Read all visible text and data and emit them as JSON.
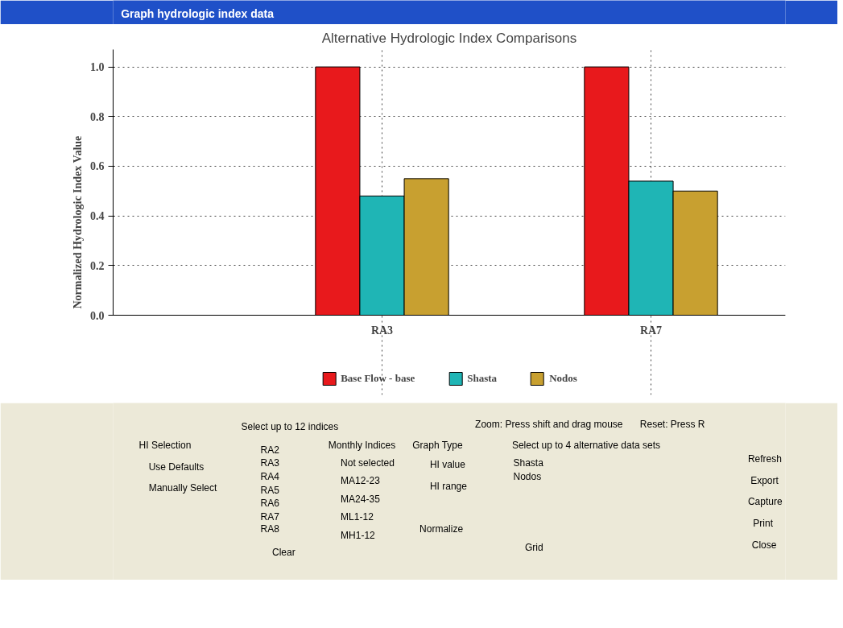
{
  "chart_data": {
    "type": "bar",
    "title": "Alternative Hydrologic Index Comparisons",
    "ylabel": "Normalized Hydrologic Index Value",
    "categories": [
      "RA3",
      "RA7"
    ],
    "series": [
      {
        "name": "Base Flow - base",
        "color": "#e8191c",
        "values": [
          1.0,
          1.0
        ]
      },
      {
        "name": "Shasta",
        "color": "#1fb5b5",
        "values": [
          0.48,
          0.54
        ]
      },
      {
        "name": "Nodos",
        "color": "#c8a030",
        "values": [
          0.55,
          0.5
        ]
      }
    ],
    "ylim": [
      0,
      1.07
    ],
    "yticks": [
      {
        "value": 0,
        "label": "0.0"
      },
      0.2,
      0.4,
      0.6,
      0.8,
      {
        "value": 1,
        "label": "1.0"
      }
    ],
    "grid": true,
    "line_style": "dotted",
    "legend": "bottom",
    "annotations": [
      "Graph hydrologic index data",
      "Select up to 12 indices",
      "Zoom:  Press shift and drag mouse",
      "Reset:  Press R",
      "HI Selection",
      "Use Defaults",
      "Manually Select",
      "RA2",
      "RA3",
      "RA4",
      "RA5",
      "RA6",
      "RA7",
      "RA8",
      "Clear",
      "Monthly Indices",
      "Not selected",
      "MA12-23",
      "MA24-35",
      "ML1-12",
      "MH1-12",
      "Graph Type",
      "HI value",
      "HI range",
      "Normalize",
      "Select up to 4 alternative data sets",
      "Shasta",
      "Nodos",
      "Grid",
      "Refresh",
      "Export",
      "Capture",
      "Print",
      "Close"
    ]
  }
}
